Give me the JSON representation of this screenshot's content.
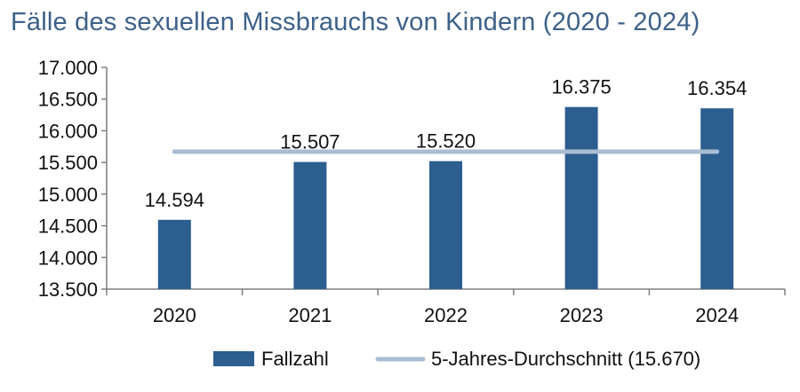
{
  "chart_data": {
    "type": "bar",
    "title": "Fälle des sexuellen Missbrauchs von Kindern (2020 - 2024)",
    "categories": [
      "2020",
      "2021",
      "2022",
      "2023",
      "2024"
    ],
    "series": [
      {
        "name": "Fallzahl",
        "type": "bar",
        "values": [
          14594,
          15507,
          15520,
          16375,
          16354
        ],
        "labels": [
          "14.594",
          "15.507",
          "15.520",
          "16.375",
          "16.354"
        ],
        "color": "#2c5e8f"
      },
      {
        "name": "5-Jahres-Durchschnitt (15.670)",
        "type": "line",
        "values": [
          15670,
          15670,
          15670,
          15670,
          15670
        ],
        "color": "#a9bdd3"
      }
    ],
    "ylim": [
      13500,
      17000
    ],
    "yticks": [
      13500,
      14000,
      14500,
      15000,
      15500,
      16000,
      16500,
      17000
    ],
    "ytick_labels": [
      "13.500",
      "14.000",
      "14.500",
      "15.000",
      "15.500",
      "16.000",
      "16.500",
      "17.000"
    ],
    "xlabel": "",
    "ylabel": "",
    "grid": false,
    "legend_position": "bottom"
  }
}
